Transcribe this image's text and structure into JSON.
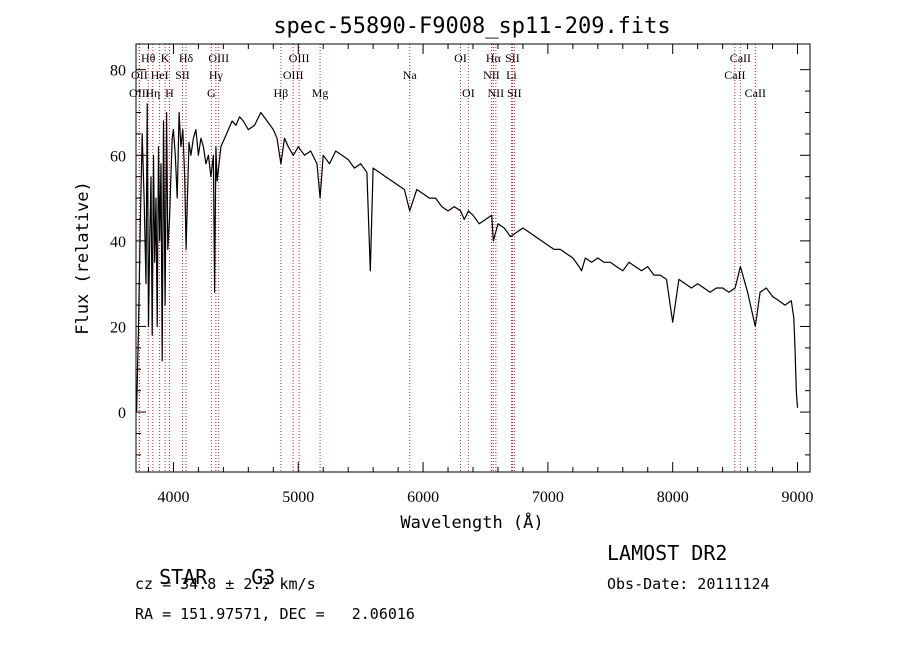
{
  "chart_data": {
    "type": "line",
    "title": "spec-55890-F9008_sp11-209.fits",
    "xlabel": "Wavelength (Å)",
    "ylabel": "Flux (relative)",
    "xlim": [
      3700,
      9100
    ],
    "ylim": [
      -14,
      86
    ],
    "x_ticks": [
      4000,
      5000,
      6000,
      7000,
      8000,
      9000
    ],
    "x_tick_labels": [
      "4000",
      "5000",
      "6000",
      "7000",
      "8000",
      "9000"
    ],
    "y_ticks": [
      0,
      20,
      40,
      60,
      80
    ],
    "y_tick_labels": [
      "0",
      "20",
      "40",
      "60",
      "80"
    ],
    "grid": false,
    "line_color": "#000000",
    "marker_color": "#cc2222",
    "series": [
      {
        "values_x": [
          3705,
          3720,
          3735,
          3750,
          3765,
          3780,
          3790,
          3800,
          3810,
          3820,
          3830,
          3840,
          3850,
          3860,
          3870,
          3880,
          3890,
          3900,
          3910,
          3920,
          3933,
          3945,
          3955,
          3968,
          3980,
          3990,
          4000,
          4015,
          4030,
          4045,
          4060,
          4075,
          4090,
          4101,
          4110,
          4125,
          4140,
          4160,
          4180,
          4200,
          4220,
          4240,
          4260,
          4280,
          4300,
          4320,
          4330,
          4340,
          4350,
          4380,
          4410,
          4440,
          4470,
          4500,
          4530,
          4560,
          4600,
          4650,
          4700,
          4750,
          4800,
          4830,
          4861,
          4890,
          4920,
          4960,
          5000,
          5050,
          5100,
          5150,
          5175,
          5200,
          5250,
          5300,
          5350,
          5400,
          5450,
          5500,
          5550,
          5577,
          5600,
          5650,
          5700,
          5750,
          5800,
          5850,
          5893,
          5950,
          6000,
          6050,
          6100,
          6150,
          6200,
          6250,
          6300,
          6330,
          6363,
          6400,
          6450,
          6500,
          6550,
          6563,
          6600,
          6650,
          6700,
          6750,
          6800,
          6850,
          6900,
          6950,
          7000,
          7050,
          7100,
          7150,
          7200,
          7250,
          7270,
          7300,
          7350,
          7400,
          7450,
          7500,
          7550,
          7600,
          7650,
          7700,
          7750,
          7800,
          7850,
          7900,
          7950,
          8000,
          8050,
          8100,
          8150,
          8200,
          8250,
          8300,
          8350,
          8400,
          8450,
          8500,
          8542,
          8600,
          8662,
          8700,
          8750,
          8800,
          8850,
          8900,
          8950,
          8970,
          8980,
          8990,
          9000
        ],
        "values_y": [
          0,
          20,
          45,
          65,
          50,
          30,
          72,
          20,
          40,
          55,
          18,
          60,
          35,
          50,
          20,
          62,
          40,
          58,
          12,
          68,
          25,
          70,
          38,
          45,
          55,
          64,
          66,
          60,
          50,
          70,
          62,
          66,
          55,
          38,
          48,
          63,
          60,
          64,
          66,
          60,
          64,
          62,
          58,
          60,
          55,
          60,
          28,
          62,
          54,
          62,
          64,
          66,
          68,
          67,
          69,
          68,
          66,
          67,
          70,
          68,
          66,
          64,
          58,
          64,
          62,
          60,
          62,
          60,
          61,
          58,
          50,
          60,
          58,
          61,
          60,
          59,
          57,
          58,
          56,
          33,
          57,
          56,
          55,
          54,
          53,
          52,
          47,
          52,
          51,
          50,
          50,
          48,
          47,
          48,
          47,
          45,
          47,
          46,
          44,
          45,
          46,
          40,
          44,
          43,
          41,
          42,
          43,
          42,
          41,
          40,
          39,
          38,
          38,
          37,
          36,
          34,
          33,
          36,
          35,
          36,
          35,
          35,
          34,
          33,
          35,
          34,
          33,
          34,
          32,
          32,
          31,
          21,
          31,
          30,
          29,
          30,
          29,
          28,
          29,
          29,
          28,
          29,
          34,
          28,
          20,
          28,
          29,
          27,
          26,
          25,
          26,
          22,
          15,
          5,
          1
        ]
      }
    ],
    "line_markers": [
      {
        "label": "Hθ",
        "x": 3798,
        "row": 1
      },
      {
        "label": "OII",
        "x": 3727,
        "row": 2
      },
      {
        "label": "OIII",
        "x": 3727,
        "row": 3
      },
      {
        "label": "K",
        "x": 3933,
        "row": 1
      },
      {
        "label": "HeI",
        "x": 3889,
        "row": 2
      },
      {
        "label": "Hη",
        "x": 3835,
        "row": 3
      },
      {
        "label": "SII",
        "x": 4072,
        "row": 2
      },
      {
        "label": "H",
        "x": 3968,
        "row": 3
      },
      {
        "label": "Hδ",
        "x": 4101,
        "row": 1
      },
      {
        "label": "OIII",
        "x": 4363,
        "row": 1
      },
      {
        "label": "Hγ",
        "x": 4340,
        "row": 2
      },
      {
        "label": "G",
        "x": 4304,
        "row": 3
      },
      {
        "label": "OIII",
        "x": 5007,
        "row": 1
      },
      {
        "label": "OIII",
        "x": 4959,
        "row": 2
      },
      {
        "label": "Hβ",
        "x": 4861,
        "row": 3
      },
      {
        "label": "Mg",
        "x": 5175,
        "row": 3
      },
      {
        "label": "Na",
        "x": 5893,
        "row": 2
      },
      {
        "label": "OI",
        "x": 6300,
        "row": 1
      },
      {
        "label": "OI",
        "x": 6363,
        "row": 3
      },
      {
        "label": "Hα",
        "x": 6563,
        "row": 1
      },
      {
        "label": "SII",
        "x": 6716,
        "row": 1
      },
      {
        "label": "NII",
        "x": 6548,
        "row": 2
      },
      {
        "label": "Li",
        "x": 6708,
        "row": 2
      },
      {
        "label": "NII",
        "x": 6583,
        "row": 3
      },
      {
        "label": "SII",
        "x": 6731,
        "row": 3
      },
      {
        "label": "CaII",
        "x": 8542,
        "row": 1
      },
      {
        "label": "CaII",
        "x": 8498,
        "row": 2
      },
      {
        "label": "CaII",
        "x": 8662,
        "row": 3
      }
    ]
  },
  "info": {
    "class": "STAR",
    "subclass": "G3",
    "survey": "LAMOST DR2",
    "redshift": "cz = 34.8 ± 2.2 km/s",
    "obs_date": "Obs-Date: 20111124",
    "coords": "RA = 151.97571, DEC =   2.06016"
  }
}
